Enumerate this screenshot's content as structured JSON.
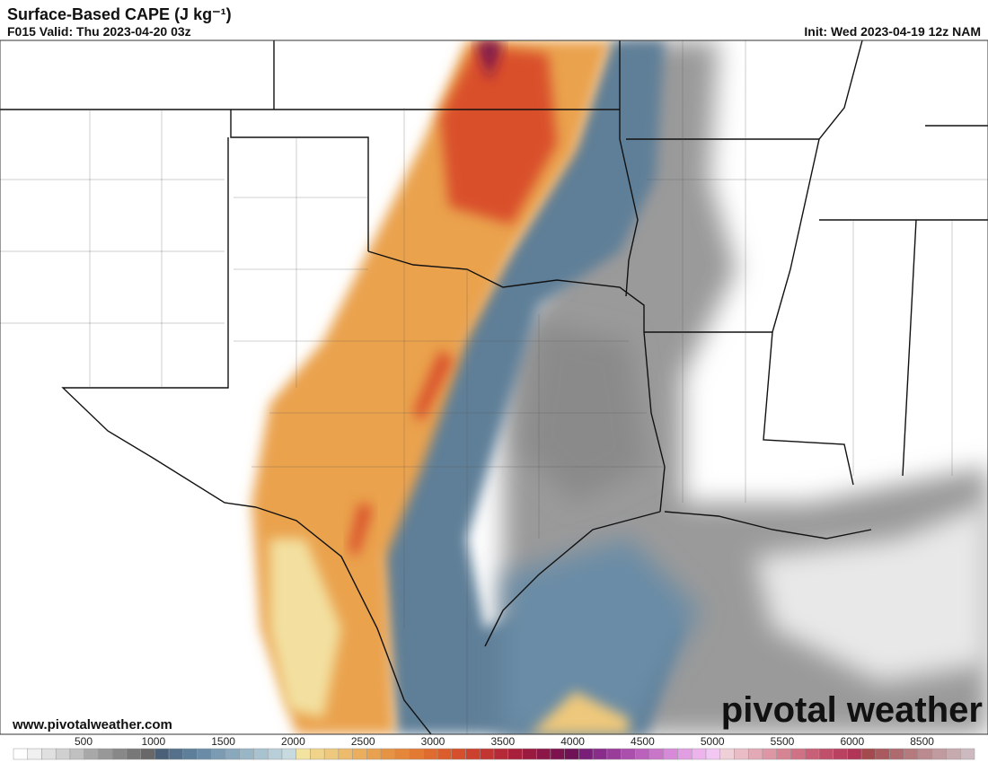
{
  "header": {
    "title": "Surface-Based CAPE (J kg⁻¹)",
    "valid": "F015 Valid: Thu 2023-04-20 03z",
    "init": "Init: Wed 2023-04-19 12z NAM"
  },
  "footer": {
    "website": "www.pivotalweather.com",
    "logo": "pivotal weather"
  },
  "colorbar": {
    "labels": [
      "500",
      "1000",
      "1500",
      "2000",
      "2500",
      "3000",
      "3500",
      "4000",
      "4500",
      "5000",
      "5500",
      "6000",
      "8500"
    ],
    "colors": [
      "#ffffff",
      "#f0f0f0",
      "#e0e0e0",
      "#d0d0d0",
      "#c0c0c0",
      "#a8a8a8",
      "#989898",
      "#888888",
      "#787878",
      "#686868",
      "#4a5f78",
      "#54708a",
      "#5e7f99",
      "#6b8ca6",
      "#7a9bb2",
      "#89a8bc",
      "#98b6c6",
      "#a8c2cf",
      "#b8ced8",
      "#c7dadf",
      "#f3e3a1",
      "#efd48a",
      "#eec87c",
      "#ecbb6b",
      "#eaae5c",
      "#e8a14f",
      "#e69444",
      "#e4873b",
      "#e27a34",
      "#e06b2e",
      "#dc5d2c",
      "#d54f2c",
      "#cc412e",
      "#c23532",
      "#b52a36",
      "#a8203a",
      "#9a1a40",
      "#8c1647",
      "#7d134e",
      "#6f1256",
      "#7a1f79",
      "#8a2d8a",
      "#9a3d9a",
      "#aa4fab",
      "#ba62bb",
      "#c976c9",
      "#d78ad7",
      "#e29ee2",
      "#ecb3ec",
      "#f3c7f3",
      "#efd0d8",
      "#e9bcc6",
      "#e3a9b5",
      "#dc96a4",
      "#d68494",
      "#cf7285",
      "#c86077",
      "#c0506a",
      "#b8425f",
      "#b03556",
      "#a24a4e",
      "#a85a5e",
      "#ae6a6e",
      "#b47a7e",
      "#ba8a8e",
      "#c09a9e",
      "#c6aaae",
      "#ccbabe"
    ]
  }
}
